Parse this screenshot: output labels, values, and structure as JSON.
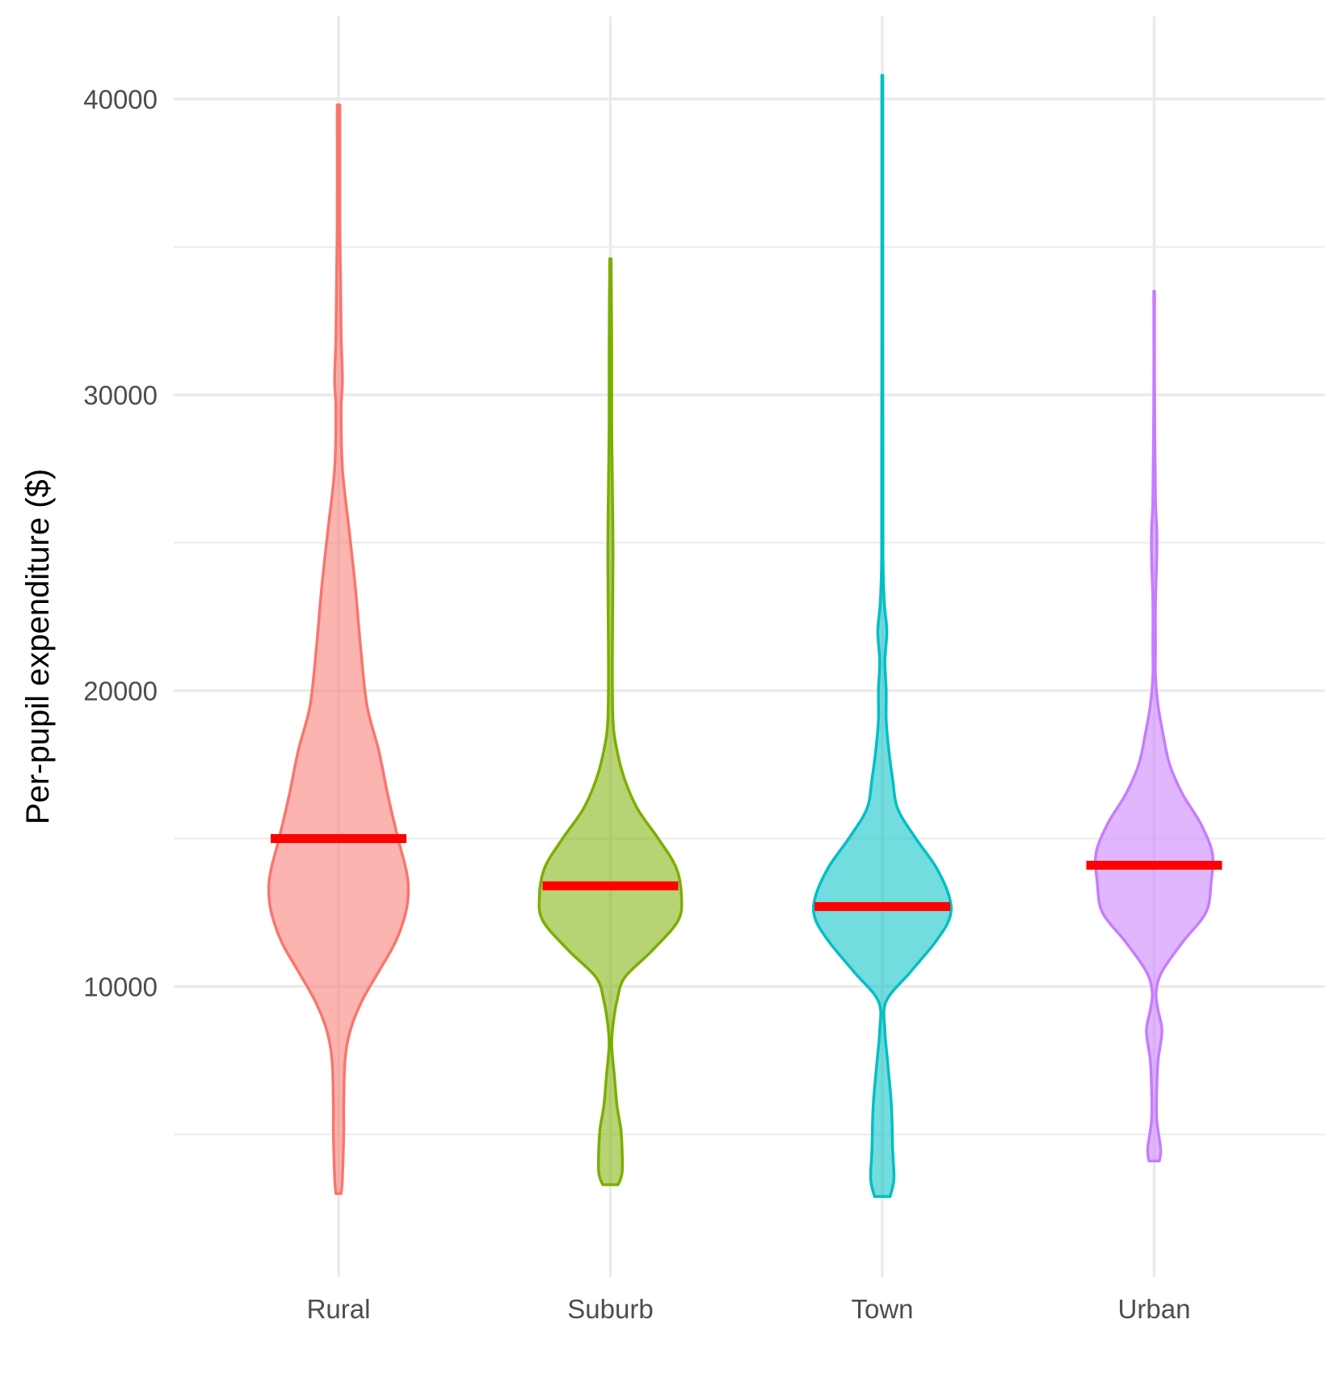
{
  "chart_data": {
    "type": "violin",
    "title": "",
    "xlabel": "",
    "ylabel": "Per-pupil expenditure ($)",
    "categories": [
      "Rural",
      "Suburb",
      "Town",
      "Urban"
    ],
    "ylim": [
      2000,
      43000
    ],
    "y_ticks": [
      10000,
      20000,
      30000,
      40000
    ],
    "y_minor_ticks": [
      5000,
      15000,
      25000,
      35000
    ],
    "grid": true,
    "legend": "none",
    "median_color": "#FF0000",
    "series": [
      {
        "category": "Rural",
        "color": "#F8766D",
        "median": 15000,
        "min": 3000,
        "max": 39800,
        "density": [
          [
            3000,
            0.02
          ],
          [
            3500,
            0.03
          ],
          [
            5000,
            0.04
          ],
          [
            6000,
            0.04
          ],
          [
            7500,
            0.05
          ],
          [
            8500,
            0.09
          ],
          [
            9500,
            0.18
          ],
          [
            10500,
            0.31
          ],
          [
            11500,
            0.44
          ],
          [
            12500,
            0.52
          ],
          [
            13300,
            0.54
          ],
          [
            14000,
            0.52
          ],
          [
            15000,
            0.46
          ],
          [
            16500,
            0.38
          ],
          [
            18000,
            0.31
          ],
          [
            19500,
            0.22
          ],
          [
            21500,
            0.17
          ],
          [
            23500,
            0.13
          ],
          [
            25500,
            0.08
          ],
          [
            27500,
            0.03
          ],
          [
            29500,
            0.02
          ],
          [
            30500,
            0.03
          ],
          [
            32000,
            0.02
          ],
          [
            34000,
            0.015
          ],
          [
            36000,
            0.01
          ],
          [
            39800,
            0.01
          ]
        ]
      },
      {
        "category": "Suburb",
        "color": "#7CAE00",
        "median": 13400,
        "min": 3300,
        "max": 34600,
        "density": [
          [
            3300,
            0.06
          ],
          [
            3700,
            0.09
          ],
          [
            4500,
            0.09
          ],
          [
            5200,
            0.08
          ],
          [
            6000,
            0.05
          ],
          [
            7000,
            0.03
          ],
          [
            8000,
            0.01
          ],
          [
            8700,
            0.02
          ],
          [
            9500,
            0.05
          ],
          [
            10300,
            0.11
          ],
          [
            11200,
            0.32
          ],
          [
            12200,
            0.52
          ],
          [
            13000,
            0.55
          ],
          [
            14000,
            0.51
          ],
          [
            15000,
            0.37
          ],
          [
            16000,
            0.21
          ],
          [
            17000,
            0.11
          ],
          [
            18000,
            0.05
          ],
          [
            19000,
            0.02
          ],
          [
            21000,
            0.015
          ],
          [
            24500,
            0.02
          ],
          [
            27000,
            0.015
          ],
          [
            29000,
            0.01
          ],
          [
            31500,
            0.01
          ],
          [
            33000,
            0.008
          ],
          [
            34600,
            0.005
          ]
        ]
      },
      {
        "category": "Town",
        "color": "#00BFC4",
        "median": 12700,
        "min": 2900,
        "max": 40800,
        "density": [
          [
            2900,
            0.06
          ],
          [
            3500,
            0.09
          ],
          [
            4500,
            0.08
          ],
          [
            6000,
            0.07
          ],
          [
            7500,
            0.04
          ],
          [
            8500,
            0.02
          ],
          [
            9500,
            0.03
          ],
          [
            10500,
            0.22
          ],
          [
            11500,
            0.41
          ],
          [
            12300,
            0.52
          ],
          [
            13000,
            0.52
          ],
          [
            14000,
            0.42
          ],
          [
            15000,
            0.26
          ],
          [
            16000,
            0.12
          ],
          [
            17000,
            0.08
          ],
          [
            18000,
            0.05
          ],
          [
            19000,
            0.03
          ],
          [
            20000,
            0.03
          ],
          [
            21000,
            0.02
          ],
          [
            22000,
            0.035
          ],
          [
            23000,
            0.015
          ],
          [
            24500,
            0.005
          ],
          [
            27500,
            0.005
          ],
          [
            32000,
            0.004
          ],
          [
            40800,
            0.004
          ]
        ]
      },
      {
        "category": "Urban",
        "color": "#C77CFF",
        "median": 14100,
        "min": 4100,
        "max": 33500,
        "density": [
          [
            4100,
            0.04
          ],
          [
            4500,
            0.05
          ],
          [
            5500,
            0.02
          ],
          [
            6500,
            0.02
          ],
          [
            7500,
            0.03
          ],
          [
            8500,
            0.06
          ],
          [
            9200,
            0.03
          ],
          [
            9800,
            0.015
          ],
          [
            10500,
            0.06
          ],
          [
            11500,
            0.22
          ],
          [
            12500,
            0.4
          ],
          [
            13500,
            0.44
          ],
          [
            14500,
            0.45
          ],
          [
            15500,
            0.36
          ],
          [
            16500,
            0.22
          ],
          [
            17500,
            0.12
          ],
          [
            18500,
            0.07
          ],
          [
            19500,
            0.03
          ],
          [
            20500,
            0.01
          ],
          [
            21500,
            0.01
          ],
          [
            23000,
            0.01
          ],
          [
            24500,
            0.02
          ],
          [
            25500,
            0.02
          ],
          [
            26500,
            0.01
          ],
          [
            30000,
            0.003
          ],
          [
            33500,
            0.003
          ]
        ]
      }
    ]
  }
}
